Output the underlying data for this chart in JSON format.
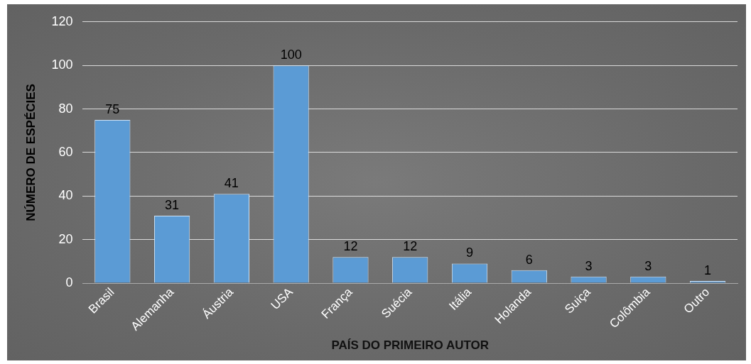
{
  "chart_data": {
    "type": "bar",
    "xlabel": "PAÍS DO PRIMEIRO AUTOR",
    "ylabel": "NÚMERO DE ESPÉCIES",
    "categories": [
      "Brasil",
      "Alemanha",
      "Áustria",
      "USA",
      "França",
      "Suécia",
      "Itália",
      "Holanda",
      "Suiça",
      "Colômbia",
      "Outro"
    ],
    "values": [
      75,
      31,
      41,
      100,
      12,
      12,
      9,
      6,
      3,
      3,
      1
    ],
    "color": "#5b9bd5",
    "ylim": [
      0,
      120
    ],
    "yticks": [
      0,
      20,
      40,
      60,
      80,
      100,
      120
    ],
    "grid": "y",
    "data_labels": true
  }
}
